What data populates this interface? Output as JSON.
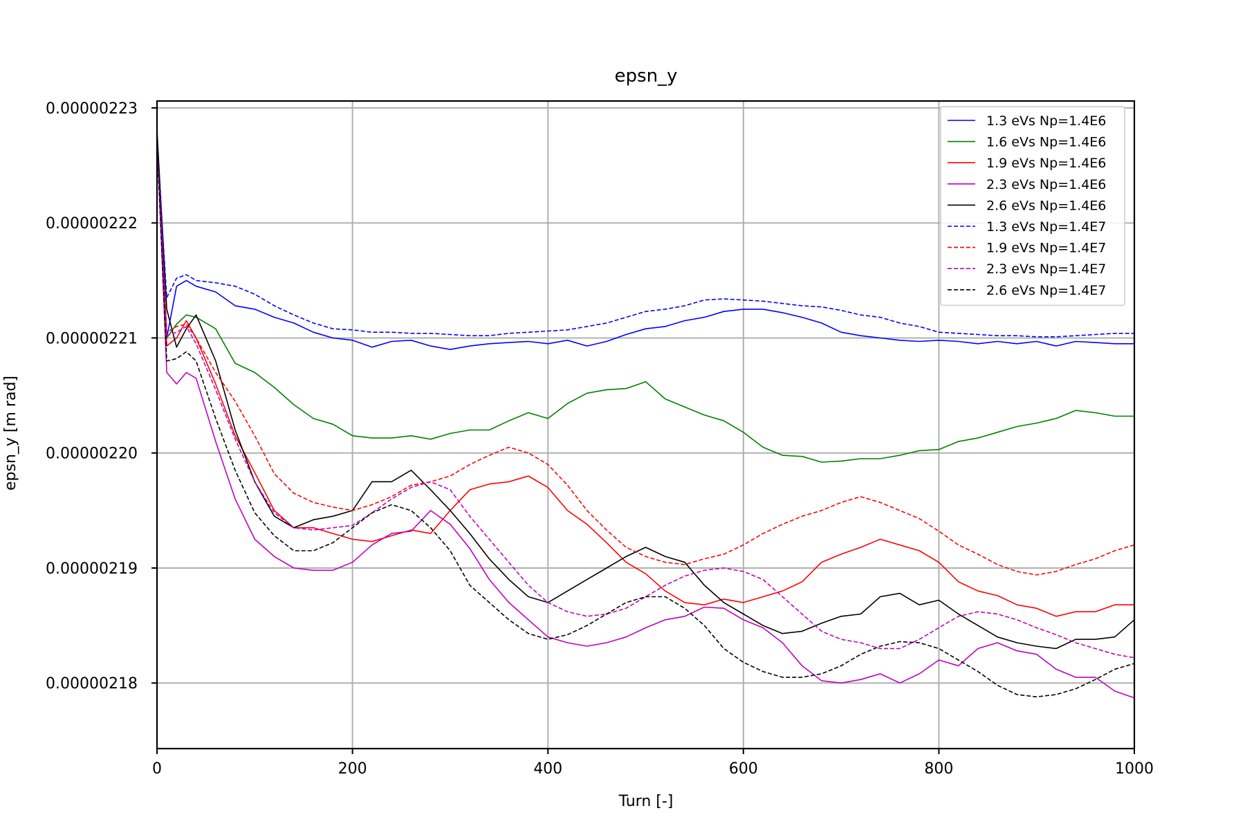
{
  "chart_data": {
    "type": "line",
    "title": "epsn_y",
    "xlabel": "Turn [-]",
    "ylabel": "epsn_y [m rad]",
    "xlim": [
      0,
      1000
    ],
    "ylim": [
      2.1743e-06,
      2.2306e-06
    ],
    "grid": true,
    "legend_position": "top-right",
    "x_ticks": [
      {
        "value": 0,
        "label": "0"
      },
      {
        "value": 200,
        "label": "200"
      },
      {
        "value": 400,
        "label": "400"
      },
      {
        "value": 600,
        "label": "600"
      },
      {
        "value": 800,
        "label": "800"
      },
      {
        "value": 1000,
        "label": "1000"
      }
    ],
    "y_ticks": [
      {
        "value": 2.18e-06,
        "label": "0.00000218"
      },
      {
        "value": 2.19e-06,
        "label": "0.00000219"
      },
      {
        "value": 2.2e-06,
        "label": "0.00000220"
      },
      {
        "value": 2.21e-06,
        "label": "0.00000221"
      },
      {
        "value": 2.22e-06,
        "label": "0.00000222"
      },
      {
        "value": 2.23e-06,
        "label": "0.00000223"
      }
    ],
    "x": [
      0,
      10,
      20,
      30,
      40,
      60,
      80,
      100,
      120,
      140,
      160,
      180,
      200,
      220,
      240,
      260,
      280,
      300,
      320,
      340,
      360,
      380,
      400,
      420,
      440,
      460,
      480,
      500,
      520,
      540,
      560,
      580,
      600,
      620,
      640,
      660,
      680,
      700,
      720,
      740,
      760,
      780,
      800,
      820,
      840,
      860,
      880,
      900,
      920,
      940,
      960,
      980,
      1000
    ],
    "series": [
      {
        "name": "1.3 eVs Np=1.4E6",
        "color": "#0000ff",
        "dash": "solid",
        "values": [
          2.2275e-06,
          2.21e-06,
          2.2145e-06,
          2.215e-06,
          2.2145e-06,
          2.214e-06,
          2.2128e-06,
          2.2125e-06,
          2.2118e-06,
          2.2113e-06,
          2.2105e-06,
          2.21e-06,
          2.2098e-06,
          2.2092e-06,
          2.2097e-06,
          2.2098e-06,
          2.2093e-06,
          2.209e-06,
          2.2093e-06,
          2.2095e-06,
          2.2096e-06,
          2.2097e-06,
          2.2095e-06,
          2.2098e-06,
          2.2093e-06,
          2.2097e-06,
          2.2103e-06,
          2.2108e-06,
          2.211e-06,
          2.2115e-06,
          2.2118e-06,
          2.2123e-06,
          2.2125e-06,
          2.2125e-06,
          2.2122e-06,
          2.2118e-06,
          2.2113e-06,
          2.2105e-06,
          2.2102e-06,
          2.21e-06,
          2.2098e-06,
          2.2097e-06,
          2.2098e-06,
          2.2097e-06,
          2.2095e-06,
          2.2097e-06,
          2.2095e-06,
          2.2097e-06,
          2.2093e-06,
          2.2097e-06,
          2.2096e-06,
          2.2095e-06,
          2.2095e-06
        ]
      },
      {
        "name": "1.6 eVs Np=1.4E6",
        "color": "#008000",
        "dash": "solid",
        "values": [
          2.2275e-06,
          2.21e-06,
          2.2112e-06,
          2.212e-06,
          2.2118e-06,
          2.2108e-06,
          2.2078e-06,
          2.207e-06,
          2.2057e-06,
          2.2042e-06,
          2.203e-06,
          2.2025e-06,
          2.2015e-06,
          2.2013e-06,
          2.2013e-06,
          2.2015e-06,
          2.2012e-06,
          2.2017e-06,
          2.202e-06,
          2.202e-06,
          2.2028e-06,
          2.2035e-06,
          2.203e-06,
          2.2043e-06,
          2.2052e-06,
          2.2055e-06,
          2.2056e-06,
          2.2062e-06,
          2.2047e-06,
          2.204e-06,
          2.2033e-06,
          2.2028e-06,
          2.2018e-06,
          2.2005e-06,
          2.1998e-06,
          2.1997e-06,
          2.1992e-06,
          2.1993e-06,
          2.1995e-06,
          2.1995e-06,
          2.1998e-06,
          2.2002e-06,
          2.2003e-06,
          2.201e-06,
          2.2013e-06,
          2.2018e-06,
          2.2023e-06,
          2.2026e-06,
          2.203e-06,
          2.2037e-06,
          2.2035e-06,
          2.2032e-06,
          2.2032e-06
        ]
      },
      {
        "name": "1.9 eVs Np=1.4E6",
        "color": "#ff0000",
        "dash": "solid",
        "values": [
          2.2275e-06,
          2.2093e-06,
          2.21e-06,
          2.2115e-06,
          2.21e-06,
          2.206e-06,
          2.2015e-06,
          2.1983e-06,
          2.195e-06,
          2.1935e-06,
          2.1935e-06,
          2.193e-06,
          2.1925e-06,
          2.1923e-06,
          2.1928e-06,
          2.1933e-06,
          2.193e-06,
          2.195e-06,
          2.1968e-06,
          2.1973e-06,
          2.1975e-06,
          2.198e-06,
          2.197e-06,
          2.195e-06,
          2.1938e-06,
          2.1922e-06,
          2.1905e-06,
          2.1895e-06,
          2.188e-06,
          2.187e-06,
          2.1868e-06,
          2.1873e-06,
          2.187e-06,
          2.1875e-06,
          2.188e-06,
          2.1888e-06,
          2.1905e-06,
          2.1912e-06,
          2.1918e-06,
          2.1925e-06,
          2.192e-06,
          2.1915e-06,
          2.1905e-06,
          2.1888e-06,
          2.188e-06,
          2.1876e-06,
          2.1868e-06,
          2.1865e-06,
          2.1858e-06,
          2.1862e-06,
          2.1862e-06,
          2.1868e-06,
          2.1868e-06
        ]
      },
      {
        "name": "2.3 eVs Np=1.4E6",
        "color": "#bf00bf",
        "dash": "solid",
        "values": [
          2.2275e-06,
          2.207e-06,
          2.206e-06,
          2.207e-06,
          2.2065e-06,
          2.201e-06,
          2.196e-06,
          2.1925e-06,
          2.191e-06,
          2.19e-06,
          2.1898e-06,
          2.1898e-06,
          2.1905e-06,
          2.192e-06,
          2.193e-06,
          2.1932e-06,
          2.195e-06,
          2.1938e-06,
          2.1917e-06,
          2.189e-06,
          2.187e-06,
          2.1855e-06,
          2.184e-06,
          2.1835e-06,
          2.1832e-06,
          2.1835e-06,
          2.184e-06,
          2.1848e-06,
          2.1855e-06,
          2.1858e-06,
          2.1866e-06,
          2.1865e-06,
          2.1855e-06,
          2.1848e-06,
          2.1835e-06,
          2.1815e-06,
          2.1802e-06,
          2.18e-06,
          2.1803e-06,
          2.1808e-06,
          2.18e-06,
          2.1808e-06,
          2.182e-06,
          2.1815e-06,
          2.183e-06,
          2.1835e-06,
          2.1828e-06,
          2.1825e-06,
          2.1812e-06,
          2.1805e-06,
          2.1805e-06,
          2.1793e-06,
          2.1787e-06
        ]
      },
      {
        "name": "2.6 eVs Np=1.4E6",
        "color": "#000000",
        "dash": "solid",
        "values": [
          2.228e-06,
          2.2125e-06,
          2.2092e-06,
          2.2108e-06,
          2.212e-06,
          2.208e-06,
          2.202e-06,
          2.1975e-06,
          2.1945e-06,
          2.1935e-06,
          2.1942e-06,
          2.1945e-06,
          2.195e-06,
          2.1975e-06,
          2.1975e-06,
          2.1985e-06,
          2.1968e-06,
          2.195e-06,
          2.193e-06,
          2.1908e-06,
          2.189e-06,
          2.1875e-06,
          2.187e-06,
          2.188e-06,
          2.189e-06,
          2.19e-06,
          2.191e-06,
          2.1918e-06,
          2.191e-06,
          2.1905e-06,
          2.1885e-06,
          2.187e-06,
          2.186e-06,
          2.185e-06,
          2.1843e-06,
          2.1845e-06,
          2.1852e-06,
          2.1858e-06,
          2.186e-06,
          2.1875e-06,
          2.1878e-06,
          2.1868e-06,
          2.1872e-06,
          2.186e-06,
          2.185e-06,
          2.184e-06,
          2.1835e-06,
          2.1832e-06,
          2.183e-06,
          2.1838e-06,
          2.1838e-06,
          2.184e-06,
          2.1855e-06
        ]
      },
      {
        "name": "1.3 eVs Np=1.4E7",
        "color": "#0000ff",
        "dash": "dashed",
        "values": [
          2.227e-06,
          2.2135e-06,
          2.2152e-06,
          2.2155e-06,
          2.215e-06,
          2.2148e-06,
          2.2145e-06,
          2.2138e-06,
          2.2128e-06,
          2.212e-06,
          2.2113e-06,
          2.2108e-06,
          2.2107e-06,
          2.2105e-06,
          2.2105e-06,
          2.2104e-06,
          2.2104e-06,
          2.2103e-06,
          2.2102e-06,
          2.2102e-06,
          2.2104e-06,
          2.2105e-06,
          2.2106e-06,
          2.2107e-06,
          2.211e-06,
          2.2113e-06,
          2.2118e-06,
          2.2123e-06,
          2.2125e-06,
          2.2128e-06,
          2.2133e-06,
          2.2134e-06,
          2.2133e-06,
          2.2132e-06,
          2.213e-06,
          2.2128e-06,
          2.2127e-06,
          2.2124e-06,
          2.212e-06,
          2.2118e-06,
          2.2113e-06,
          2.211e-06,
          2.2105e-06,
          2.2104e-06,
          2.2103e-06,
          2.2102e-06,
          2.2102e-06,
          2.2101e-06,
          2.2101e-06,
          2.2102e-06,
          2.2103e-06,
          2.2104e-06,
          2.2104e-06
        ]
      },
      {
        "name": "1.9 eVs Np=1.4E7",
        "color": "#ff0000",
        "dash": "dashed",
        "values": [
          2.227e-06,
          2.2105e-06,
          2.211e-06,
          2.2112e-06,
          2.21e-06,
          2.207e-06,
          2.2045e-06,
          2.2015e-06,
          2.1982e-06,
          2.1965e-06,
          2.1957e-06,
          2.1953e-06,
          2.195e-06,
          2.1955e-06,
          2.1962e-06,
          2.1972e-06,
          2.1975e-06,
          2.198e-06,
          2.199e-06,
          2.1998e-06,
          2.2005e-06,
          2.2e-06,
          2.199e-06,
          2.1972e-06,
          2.195e-06,
          2.1933e-06,
          2.1918e-06,
          2.191e-06,
          2.1905e-06,
          2.1903e-06,
          2.1908e-06,
          2.1912e-06,
          2.192e-06,
          2.193e-06,
          2.1938e-06,
          2.1945e-06,
          2.195e-06,
          2.1957e-06,
          2.1962e-06,
          2.1957e-06,
          2.195e-06,
          2.1943e-06,
          2.1932e-06,
          2.192e-06,
          2.1912e-06,
          2.1903e-06,
          2.1897e-06,
          2.1894e-06,
          2.1897e-06,
          2.1903e-06,
          2.1908e-06,
          2.1915e-06,
          2.192e-06
        ]
      },
      {
        "name": "2.3 eVs Np=1.4E7",
        "color": "#bf00bf",
        "dash": "dashed",
        "values": [
          2.227e-06,
          2.2102e-06,
          2.2105e-06,
          2.211e-06,
          2.2095e-06,
          2.2055e-06,
          2.2012e-06,
          2.1975e-06,
          2.1948e-06,
          2.1935e-06,
          2.1933e-06,
          2.1935e-06,
          2.1937e-06,
          2.1948e-06,
          2.196e-06,
          2.197e-06,
          2.1975e-06,
          2.1968e-06,
          2.1945e-06,
          2.1925e-06,
          2.1905e-06,
          2.1885e-06,
          2.187e-06,
          2.1862e-06,
          2.1858e-06,
          2.186e-06,
          2.1865e-06,
          2.1875e-06,
          2.1885e-06,
          2.1893e-06,
          2.1898e-06,
          2.19e-06,
          2.1897e-06,
          2.189e-06,
          2.1875e-06,
          2.186e-06,
          2.1845e-06,
          2.1838e-06,
          2.1835e-06,
          2.183e-06,
          2.183e-06,
          2.1838e-06,
          2.1848e-06,
          2.1858e-06,
          2.1862e-06,
          2.186e-06,
          2.1855e-06,
          2.1848e-06,
          2.1842e-06,
          2.1835e-06,
          2.183e-06,
          2.1825e-06,
          2.1822e-06
        ]
      },
      {
        "name": "2.6 eVs Np=1.4E7",
        "color": "#000000",
        "dash": "dashed",
        "values": [
          2.227e-06,
          2.208e-06,
          2.2082e-06,
          2.2088e-06,
          2.208e-06,
          2.203e-06,
          2.1985e-06,
          2.1948e-06,
          2.1928e-06,
          2.1915e-06,
          2.1915e-06,
          2.1922e-06,
          2.1935e-06,
          2.1948e-06,
          2.1955e-06,
          2.195e-06,
          2.1935e-06,
          2.1915e-06,
          2.1885e-06,
          2.187e-06,
          2.1855e-06,
          2.1843e-06,
          2.1838e-06,
          2.1842e-06,
          2.185e-06,
          2.186e-06,
          2.187e-06,
          2.1875e-06,
          2.1875e-06,
          2.1865e-06,
          2.185e-06,
          2.183e-06,
          2.1818e-06,
          2.181e-06,
          2.1805e-06,
          2.1805e-06,
          2.1808e-06,
          2.1815e-06,
          2.1825e-06,
          2.1832e-06,
          2.1836e-06,
          2.1835e-06,
          2.183e-06,
          2.182e-06,
          2.181e-06,
          2.1798e-06,
          2.179e-06,
          2.1788e-06,
          2.179e-06,
          2.1795e-06,
          2.1803e-06,
          2.1812e-06,
          2.1817e-06
        ]
      }
    ]
  }
}
